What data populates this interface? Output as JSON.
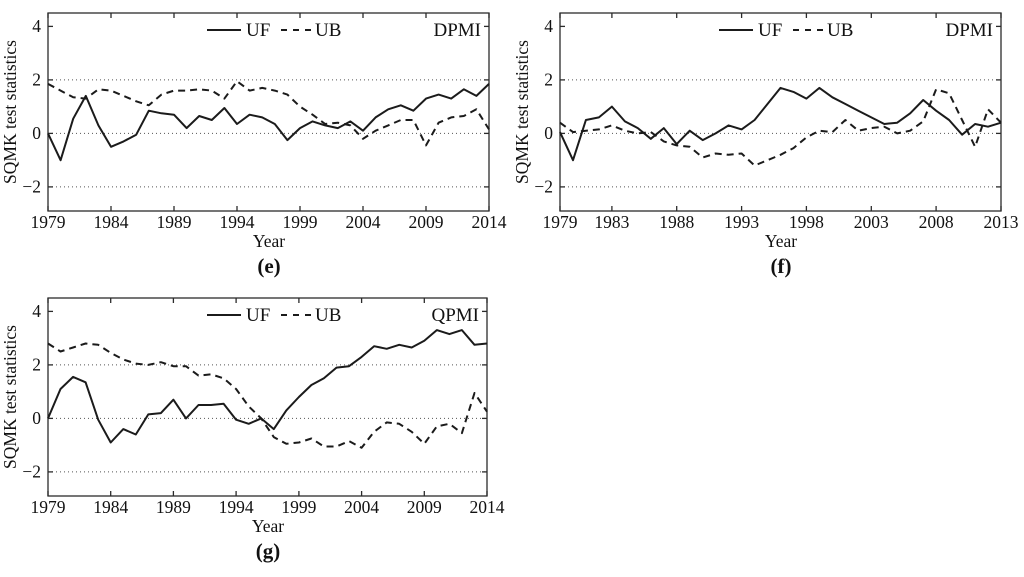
{
  "figure": {
    "background_color": "#ffffff",
    "line_color": "#1b1b1b",
    "grid_color": "#555555"
  },
  "chart_data": [
    {
      "id": "e",
      "type": "line",
      "panel_label": "(e)",
      "annotation": "DPMI",
      "xlabel": "Year",
      "ylabel": "SQMK test statistics",
      "xlim": [
        1979,
        2014
      ],
      "ylim": [
        -2.9,
        4.5
      ],
      "x_ticks": [
        1979,
        1984,
        1989,
        1994,
        1999,
        2004,
        2009,
        2014
      ],
      "y_ticks": [
        -2,
        0,
        2,
        4
      ],
      "y_tick_labels": [
        "−2",
        "0",
        "2",
        "4"
      ],
      "gridlines_y": [
        -2,
        0,
        2
      ],
      "legend_position": "top-center",
      "years": [
        1979,
        1980,
        1981,
        1982,
        1983,
        1984,
        1985,
        1986,
        1987,
        1988,
        1989,
        1990,
        1991,
        1992,
        1993,
        1994,
        1995,
        1996,
        1997,
        1998,
        1999,
        2000,
        2001,
        2002,
        2003,
        2004,
        2005,
        2006,
        2007,
        2008,
        2009,
        2010,
        2011,
        2012,
        2013,
        2014
      ],
      "series": [
        {
          "name": "UF",
          "style": "solid",
          "values": [
            0.0,
            -1.0,
            0.55,
            1.4,
            0.3,
            -0.5,
            -0.3,
            -0.05,
            0.85,
            0.75,
            0.7,
            0.2,
            0.65,
            0.5,
            0.95,
            0.35,
            0.7,
            0.6,
            0.35,
            -0.25,
            0.2,
            0.45,
            0.3,
            0.2,
            0.45,
            0.1,
            0.6,
            0.9,
            1.05,
            0.85,
            1.3,
            1.45,
            1.3,
            1.65,
            1.4,
            1.85
          ]
        },
        {
          "name": "UB",
          "style": "dashed",
          "values": [
            1.85,
            1.6,
            1.35,
            1.3,
            1.65,
            1.6,
            1.4,
            1.2,
            1.05,
            1.45,
            1.6,
            1.6,
            1.65,
            1.6,
            1.3,
            1.95,
            1.6,
            1.7,
            1.6,
            1.45,
            1.0,
            0.7,
            0.35,
            0.4,
            0.3,
            -0.2,
            0.1,
            0.3,
            0.5,
            0.5,
            -0.45,
            0.4,
            0.6,
            0.65,
            0.9,
            0.15
          ]
        }
      ]
    },
    {
      "id": "f",
      "type": "line",
      "panel_label": "(f)",
      "annotation": "DPMI",
      "xlabel": "Year",
      "ylabel": "SQMK test statistics",
      "xlim": [
        1979,
        2013
      ],
      "ylim": [
        -2.9,
        4.5
      ],
      "x_ticks": [
        1979,
        1983,
        1988,
        1993,
        1998,
        2003,
        2008,
        2013
      ],
      "y_ticks": [
        -2,
        0,
        2,
        4
      ],
      "y_tick_labels": [
        "−2",
        "0",
        "2",
        "4"
      ],
      "gridlines_y": [
        -2,
        0,
        2
      ],
      "legend_position": "top-center",
      "years": [
        1979,
        1980,
        1981,
        1982,
        1983,
        1984,
        1985,
        1986,
        1987,
        1988,
        1989,
        1990,
        1991,
        1992,
        1993,
        1994,
        1995,
        1996,
        1997,
        1998,
        1999,
        2000,
        2001,
        2002,
        2003,
        2004,
        2005,
        2006,
        2007,
        2008,
        2009,
        2010,
        2011,
        2012,
        2013
      ],
      "series": [
        {
          "name": "UF",
          "style": "solid",
          "values": [
            0.05,
            -1.0,
            0.5,
            0.6,
            1.0,
            0.45,
            0.2,
            -0.2,
            0.2,
            -0.4,
            0.1,
            -0.25,
            0.0,
            0.3,
            0.15,
            0.5,
            1.1,
            1.7,
            1.55,
            1.3,
            1.7,
            1.35,
            1.1,
            0.85,
            0.6,
            0.35,
            0.4,
            0.75,
            1.25,
            0.85,
            0.5,
            -0.05,
            0.35,
            0.25,
            0.4
          ]
        },
        {
          "name": "UB",
          "style": "dashed",
          "values": [
            0.4,
            0.05,
            0.1,
            0.15,
            0.3,
            0.1,
            0.0,
            0.05,
            -0.3,
            -0.45,
            -0.5,
            -0.9,
            -0.75,
            -0.8,
            -0.75,
            -1.2,
            -1.0,
            -0.8,
            -0.55,
            -0.15,
            0.1,
            0.05,
            0.5,
            0.1,
            0.2,
            0.25,
            0.0,
            0.1,
            0.45,
            1.65,
            1.5,
            0.5,
            -0.5,
            0.9,
            0.4
          ]
        }
      ]
    },
    {
      "id": "g",
      "type": "line",
      "panel_label": "(g)",
      "annotation": "QPMI",
      "xlabel": "Year",
      "ylabel": "SQMK test statistics",
      "xlim": [
        1979,
        2014
      ],
      "ylim": [
        -2.9,
        4.5
      ],
      "x_ticks": [
        1979,
        1984,
        1989,
        1994,
        1999,
        2004,
        2009,
        2014
      ],
      "y_ticks": [
        -2,
        0,
        2,
        4
      ],
      "y_tick_labels": [
        "−2",
        "0",
        "2",
        "4"
      ],
      "gridlines_y": [
        -2,
        0,
        2
      ],
      "legend_position": "top-center",
      "years": [
        1979,
        1980,
        1981,
        1982,
        1983,
        1984,
        1985,
        1986,
        1987,
        1988,
        1989,
        1990,
        1991,
        1992,
        1993,
        1994,
        1995,
        1996,
        1997,
        1998,
        1999,
        2000,
        2001,
        2002,
        2003,
        2004,
        2005,
        2006,
        2007,
        2008,
        2009,
        2010,
        2011,
        2012,
        2013,
        2014
      ],
      "series": [
        {
          "name": "UF",
          "style": "solid",
          "values": [
            0.0,
            1.1,
            1.55,
            1.35,
            -0.05,
            -0.9,
            -0.4,
            -0.6,
            0.15,
            0.2,
            0.7,
            0.0,
            0.5,
            0.5,
            0.55,
            -0.05,
            -0.2,
            0.0,
            -0.4,
            0.3,
            0.8,
            1.25,
            1.5,
            1.9,
            1.95,
            2.3,
            2.7,
            2.6,
            2.75,
            2.65,
            2.9,
            3.3,
            3.15,
            3.3,
            2.75,
            2.8
          ]
        },
        {
          "name": "UB",
          "style": "dashed",
          "values": [
            2.8,
            2.5,
            2.65,
            2.8,
            2.75,
            2.45,
            2.2,
            2.05,
            2.0,
            2.1,
            1.95,
            1.95,
            1.6,
            1.65,
            1.5,
            1.1,
            0.45,
            0.0,
            -0.7,
            -0.95,
            -0.9,
            -0.75,
            -1.05,
            -1.05,
            -0.85,
            -1.1,
            -0.5,
            -0.15,
            -0.2,
            -0.5,
            -0.95,
            -0.3,
            -0.2,
            -0.55,
            0.95,
            0.25
          ]
        }
      ]
    }
  ]
}
